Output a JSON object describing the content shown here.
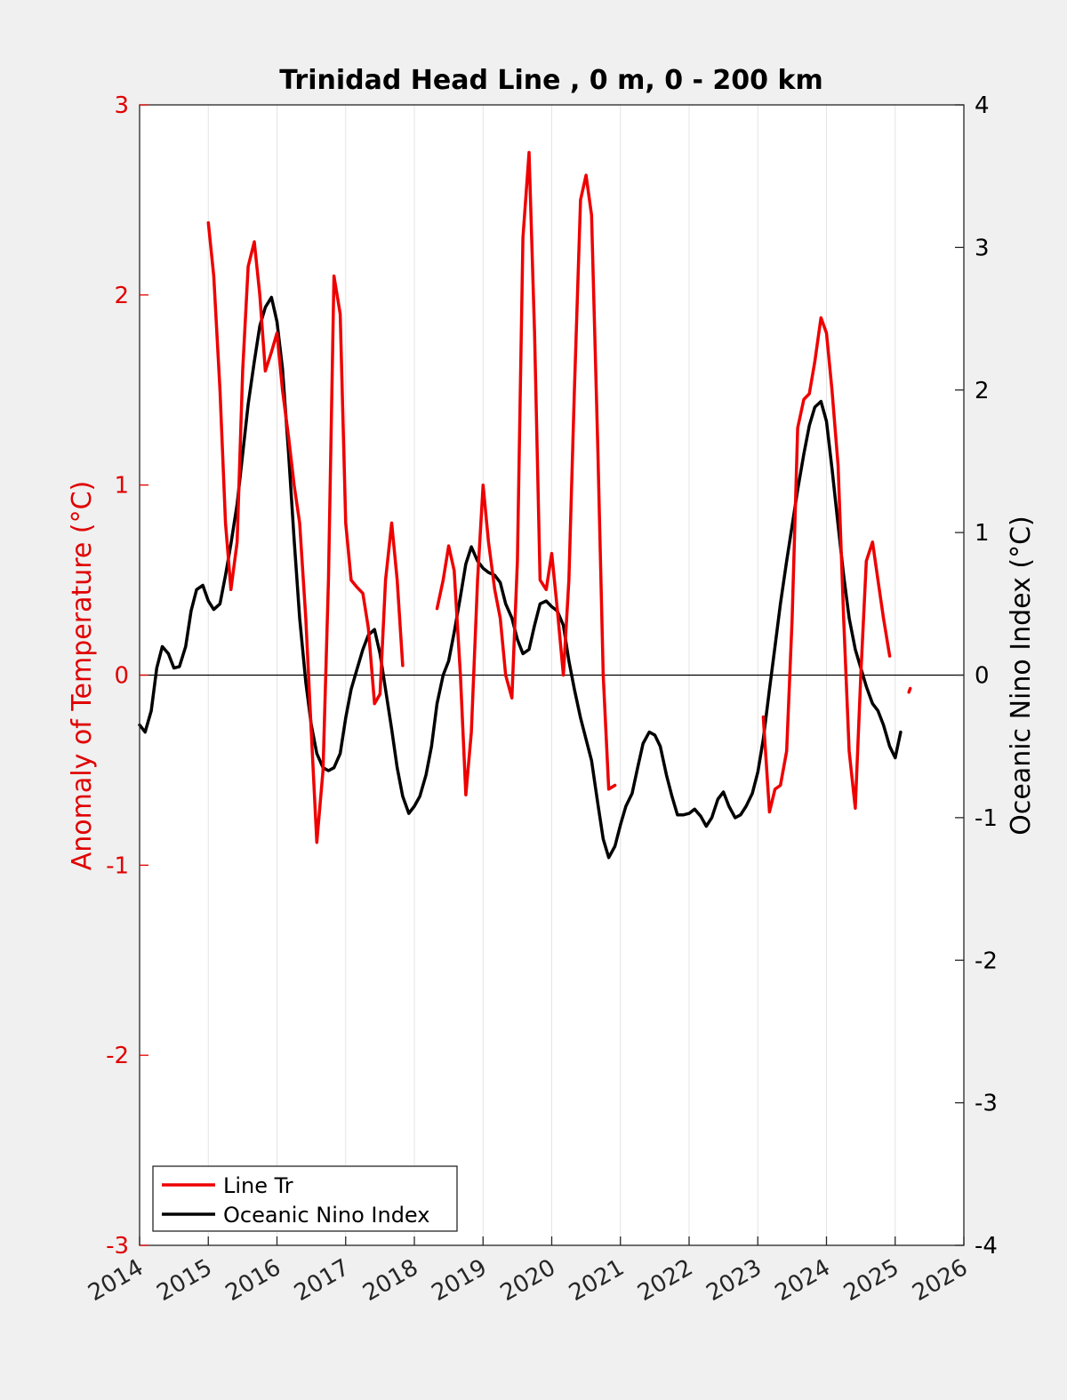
{
  "chart_data": {
    "type": "line",
    "title": "Trinidad Head Line , 0 m, 0 - 200 km",
    "xlim": [
      2014,
      2026
    ],
    "xticks": [
      "2014",
      "2015",
      "2016",
      "2017",
      "2018",
      "2019",
      "2020",
      "2021",
      "2022",
      "2023",
      "2024",
      "2025",
      "2026"
    ],
    "grid": "vertical",
    "legend_location": "bottom-left",
    "colors": {
      "line_tr": "#ee0000",
      "oni": "#000000",
      "left_axis": "#e00000"
    },
    "left_axis": {
      "label": "Anomaly of Temperature (°C)",
      "ylim": [
        -3,
        3
      ],
      "ticks": [
        "-3",
        "-2",
        "-1",
        "0",
        "1",
        "2",
        "3"
      ]
    },
    "right_axis": {
      "label": "Oceanic Nino Index (°C)",
      "ylim": [
        -4,
        4
      ],
      "ticks": [
        "-4",
        "-3",
        "-2",
        "-1",
        "0",
        "1",
        "2",
        "3",
        "4"
      ]
    },
    "series": [
      {
        "name": "Line Tr",
        "axis": "left",
        "segments": [
          [
            [
              2015.0,
              2.38
            ],
            [
              2015.08,
              2.1
            ],
            [
              2015.17,
              1.5
            ],
            [
              2015.25,
              0.8
            ],
            [
              2015.33,
              0.45
            ],
            [
              2015.42,
              0.7
            ],
            [
              2015.5,
              1.6
            ],
            [
              2015.58,
              2.15
            ],
            [
              2015.67,
              2.28
            ],
            [
              2015.75,
              2.0
            ],
            [
              2015.83,
              1.6
            ],
            [
              2015.92,
              1.7
            ],
            [
              2016.0,
              1.8
            ],
            [
              2016.08,
              1.5
            ],
            [
              2016.17,
              1.25
            ],
            [
              2016.25,
              1.0
            ],
            [
              2016.33,
              0.8
            ],
            [
              2016.42,
              0.3
            ],
            [
              2016.5,
              -0.3
            ],
            [
              2016.58,
              -0.88
            ],
            [
              2016.67,
              -0.5
            ],
            [
              2016.75,
              0.5
            ],
            [
              2016.83,
              2.1
            ],
            [
              2016.92,
              1.9
            ],
            [
              2017.0,
              0.8
            ],
            [
              2017.08,
              0.5
            ],
            [
              2017.17,
              0.46
            ],
            [
              2017.25,
              0.43
            ],
            [
              2017.33,
              0.25
            ],
            [
              2017.42,
              -0.15
            ],
            [
              2017.5,
              -0.1
            ],
            [
              2017.58,
              0.5
            ],
            [
              2017.67,
              0.8
            ],
            [
              2017.75,
              0.5
            ],
            [
              2017.83,
              0.05
            ]
          ],
          [
            [
              2018.33,
              0.35
            ],
            [
              2018.42,
              0.5
            ],
            [
              2018.5,
              0.68
            ],
            [
              2018.58,
              0.55
            ],
            [
              2018.67,
              0.0
            ],
            [
              2018.75,
              -0.63
            ],
            [
              2018.83,
              -0.3
            ],
            [
              2018.92,
              0.5
            ],
            [
              2019.0,
              1.0
            ],
            [
              2019.08,
              0.7
            ],
            [
              2019.17,
              0.45
            ],
            [
              2019.25,
              0.3
            ],
            [
              2019.33,
              0.0
            ],
            [
              2019.42,
              -0.12
            ],
            [
              2019.5,
              0.6
            ],
            [
              2019.58,
              2.3
            ],
            [
              2019.67,
              2.75
            ],
            [
              2019.75,
              1.8
            ],
            [
              2019.83,
              0.5
            ],
            [
              2019.92,
              0.45
            ],
            [
              2020.0,
              0.64
            ],
            [
              2020.08,
              0.35
            ],
            [
              2020.17,
              0.0
            ],
            [
              2020.25,
              0.5
            ],
            [
              2020.33,
              1.5
            ],
            [
              2020.42,
              2.5
            ],
            [
              2020.5,
              2.63
            ],
            [
              2020.58,
              2.42
            ],
            [
              2020.67,
              1.2
            ],
            [
              2020.75,
              0.0
            ],
            [
              2020.83,
              -0.6
            ],
            [
              2020.92,
              -0.58
            ]
          ],
          [
            [
              2023.08,
              -0.22
            ],
            [
              2023.17,
              -0.72
            ],
            [
              2023.25,
              -0.6
            ],
            [
              2023.33,
              -0.58
            ],
            [
              2023.42,
              -0.4
            ],
            [
              2023.5,
              0.3
            ],
            [
              2023.58,
              1.3
            ],
            [
              2023.67,
              1.45
            ],
            [
              2023.75,
              1.48
            ],
            [
              2023.83,
              1.65
            ],
            [
              2023.92,
              1.88
            ],
            [
              2024.0,
              1.8
            ],
            [
              2024.08,
              1.5
            ],
            [
              2024.17,
              1.1
            ],
            [
              2024.25,
              0.3
            ],
            [
              2024.33,
              -0.4
            ],
            [
              2024.42,
              -0.7
            ],
            [
              2024.5,
              0.0
            ],
            [
              2024.58,
              0.6
            ],
            [
              2024.67,
              0.7
            ],
            [
              2024.75,
              0.5
            ],
            [
              2024.83,
              0.3
            ],
            [
              2024.92,
              0.1
            ]
          ],
          [
            [
              2025.2,
              -0.09
            ],
            [
              2025.22,
              -0.07
            ]
          ]
        ]
      },
      {
        "name": "Oceanic Nino Index",
        "axis": "right",
        "segments": [
          [
            [
              2014.0,
              -0.35
            ],
            [
              2014.08,
              -0.4
            ],
            [
              2014.17,
              -0.25
            ],
            [
              2014.25,
              0.05
            ],
            [
              2014.33,
              0.2
            ],
            [
              2014.42,
              0.15
            ],
            [
              2014.5,
              0.05
            ],
            [
              2014.58,
              0.06
            ],
            [
              2014.67,
              0.2
            ],
            [
              2014.75,
              0.45
            ],
            [
              2014.83,
              0.6
            ],
            [
              2014.92,
              0.63
            ],
            [
              2015.0,
              0.52
            ],
            [
              2015.08,
              0.46
            ],
            [
              2015.17,
              0.5
            ],
            [
              2015.25,
              0.7
            ],
            [
              2015.33,
              0.92
            ],
            [
              2015.42,
              1.2
            ],
            [
              2015.5,
              1.55
            ],
            [
              2015.58,
              1.9
            ],
            [
              2015.67,
              2.2
            ],
            [
              2015.75,
              2.45
            ],
            [
              2015.83,
              2.58
            ],
            [
              2015.92,
              2.65
            ],
            [
              2016.0,
              2.48
            ],
            [
              2016.08,
              2.15
            ],
            [
              2016.17,
              1.55
            ],
            [
              2016.25,
              0.95
            ],
            [
              2016.33,
              0.4
            ],
            [
              2016.42,
              -0.05
            ],
            [
              2016.5,
              -0.35
            ],
            [
              2016.58,
              -0.55
            ],
            [
              2016.67,
              -0.65
            ],
            [
              2016.75,
              -0.67
            ],
            [
              2016.83,
              -0.65
            ],
            [
              2016.92,
              -0.55
            ],
            [
              2017.0,
              -0.3
            ],
            [
              2017.08,
              -0.1
            ],
            [
              2017.17,
              0.05
            ],
            [
              2017.25,
              0.18
            ],
            [
              2017.33,
              0.28
            ],
            [
              2017.42,
              0.32
            ],
            [
              2017.5,
              0.15
            ],
            [
              2017.58,
              -0.1
            ],
            [
              2017.67,
              -0.38
            ],
            [
              2017.75,
              -0.65
            ],
            [
              2017.83,
              -0.85
            ],
            [
              2017.92,
              -0.97
            ],
            [
              2018.0,
              -0.92
            ],
            [
              2018.08,
              -0.85
            ],
            [
              2018.17,
              -0.7
            ],
            [
              2018.25,
              -0.5
            ],
            [
              2018.33,
              -0.2
            ],
            [
              2018.42,
              0.0
            ],
            [
              2018.5,
              0.1
            ],
            [
              2018.58,
              0.3
            ],
            [
              2018.67,
              0.55
            ],
            [
              2018.75,
              0.78
            ],
            [
              2018.83,
              0.9
            ],
            [
              2018.92,
              0.8
            ],
            [
              2019.0,
              0.75
            ],
            [
              2019.08,
              0.72
            ],
            [
              2019.17,
              0.7
            ],
            [
              2019.25,
              0.65
            ],
            [
              2019.33,
              0.5
            ],
            [
              2019.42,
              0.4
            ],
            [
              2019.5,
              0.25
            ],
            [
              2019.58,
              0.15
            ],
            [
              2019.67,
              0.18
            ],
            [
              2019.75,
              0.35
            ],
            [
              2019.83,
              0.5
            ],
            [
              2019.92,
              0.52
            ],
            [
              2020.0,
              0.48
            ],
            [
              2020.08,
              0.45
            ],
            [
              2020.17,
              0.35
            ],
            [
              2020.25,
              0.1
            ],
            [
              2020.33,
              -0.1
            ],
            [
              2020.42,
              -0.3
            ],
            [
              2020.5,
              -0.45
            ],
            [
              2020.58,
              -0.6
            ],
            [
              2020.67,
              -0.9
            ],
            [
              2020.75,
              -1.15
            ],
            [
              2020.83,
              -1.28
            ],
            [
              2020.92,
              -1.2
            ],
            [
              2021.0,
              -1.05
            ],
            [
              2021.08,
              -0.92
            ],
            [
              2021.17,
              -0.83
            ],
            [
              2021.25,
              -0.65
            ],
            [
              2021.33,
              -0.48
            ],
            [
              2021.42,
              -0.4
            ],
            [
              2021.5,
              -0.42
            ],
            [
              2021.58,
              -0.5
            ],
            [
              2021.67,
              -0.7
            ],
            [
              2021.75,
              -0.85
            ],
            [
              2021.83,
              -0.98
            ],
            [
              2021.92,
              -0.98
            ],
            [
              2022.0,
              -0.97
            ],
            [
              2022.08,
              -0.94
            ],
            [
              2022.17,
              -0.99
            ],
            [
              2022.25,
              -1.06
            ],
            [
              2022.33,
              -1.0
            ],
            [
              2022.42,
              -0.87
            ],
            [
              2022.5,
              -0.82
            ],
            [
              2022.58,
              -0.92
            ],
            [
              2022.67,
              -1.0
            ],
            [
              2022.75,
              -0.98
            ],
            [
              2022.83,
              -0.92
            ],
            [
              2022.92,
              -0.83
            ],
            [
              2023.0,
              -0.68
            ],
            [
              2023.08,
              -0.45
            ],
            [
              2023.17,
              -0.1
            ],
            [
              2023.25,
              0.2
            ],
            [
              2023.33,
              0.5
            ],
            [
              2023.42,
              0.8
            ],
            [
              2023.5,
              1.05
            ],
            [
              2023.58,
              1.3
            ],
            [
              2023.67,
              1.55
            ],
            [
              2023.75,
              1.75
            ],
            [
              2023.83,
              1.88
            ],
            [
              2023.92,
              1.92
            ],
            [
              2024.0,
              1.78
            ],
            [
              2024.08,
              1.45
            ],
            [
              2024.17,
              1.05
            ],
            [
              2024.25,
              0.7
            ],
            [
              2024.33,
              0.4
            ],
            [
              2024.42,
              0.18
            ],
            [
              2024.5,
              0.05
            ],
            [
              2024.58,
              -0.08
            ],
            [
              2024.67,
              -0.2
            ],
            [
              2024.75,
              -0.25
            ],
            [
              2024.83,
              -0.35
            ],
            [
              2024.92,
              -0.5
            ],
            [
              2025.0,
              -0.58
            ],
            [
              2025.08,
              -0.4
            ]
          ]
        ]
      }
    ]
  }
}
